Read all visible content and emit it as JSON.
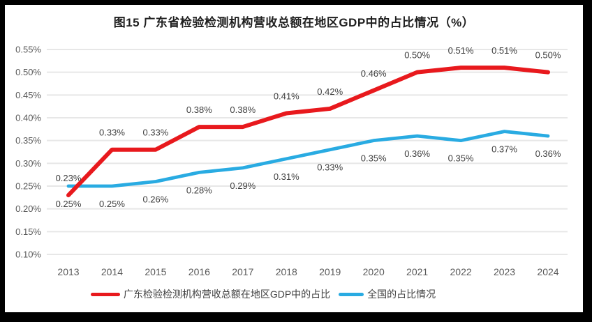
{
  "figure": {
    "title": "图15  广东省检验检测机构营收总额在地区GDP中的占比情况（%）"
  },
  "chart_data": {
    "type": "line",
    "title": "图15  广东省检验检测机构营收总额在地区GDP中的占比情况（%）",
    "xlabel": "",
    "ylabel": "",
    "categories": [
      "2013",
      "2014",
      "2015",
      "2016",
      "2017",
      "2018",
      "2019",
      "2020",
      "2021",
      "2022",
      "2023",
      "2024"
    ],
    "series": [
      {
        "name": "广东检验检测机构营收总额在地区GDP中的占比",
        "color": "#e8191d",
        "label_position": "above",
        "values": [
          0.23,
          0.33,
          0.33,
          0.38,
          0.38,
          0.41,
          0.42,
          0.46,
          0.5,
          0.51,
          0.51,
          0.5
        ],
        "labels": [
          "0.23%",
          "0.33%",
          "0.33%",
          "0.38%",
          "0.38%",
          "0.41%",
          "0.42%",
          "0.46%",
          "0.50%",
          "0.51%",
          "0.51%",
          "0.50%"
        ]
      },
      {
        "name": "全国的占比情况",
        "color": "#29abe2",
        "label_position": "below",
        "values": [
          0.25,
          0.25,
          0.26,
          0.28,
          0.29,
          0.31,
          0.33,
          0.35,
          0.36,
          0.35,
          0.37,
          0.36
        ],
        "labels": [
          "0.25%",
          "0.25%",
          "0.26%",
          "0.28%",
          "0.29%",
          "0.31%",
          "0.33%",
          "0.35%",
          "0.36%",
          "0.35%",
          "0.37%",
          "0.36%"
        ]
      }
    ],
    "y_axis": {
      "min": 0.1,
      "max": 0.55,
      "step": 0.05,
      "tick_labels": [
        "0.55%",
        "0.50%",
        "0.45%",
        "0.40%",
        "0.35%",
        "0.30%",
        "0.25%",
        "0.20%",
        "0.15%",
        "0.10%"
      ]
    },
    "ylim": [
      0.1,
      0.55
    ],
    "grid": true,
    "legend_position": "bottom",
    "colors": {
      "gridline": "#e7e7e7",
      "axis_text": "#595959",
      "data_label_text": "#404040",
      "title_text": "#1f1f1f",
      "frame": "#000000"
    }
  }
}
